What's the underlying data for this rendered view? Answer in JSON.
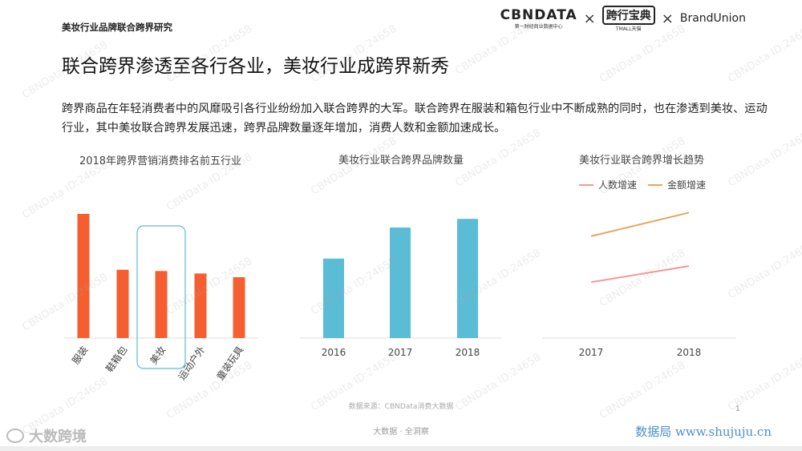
{
  "header": {
    "section_label": "美妆行业品牌联合跨界研究",
    "brands": {
      "cbndata": "CBNDATA",
      "cbndata_sub": "第一财经商业数据中心",
      "times_symbol": "×",
      "tmall": "跨行宝典",
      "tmall_sub": "TMALL天猫",
      "brandunion": "BrandUnion"
    }
  },
  "page_title": "联合跨界渗透至各行各业，美妆行业成跨界新秀",
  "intro_text": "跨界商品在年轻消费者中的风靡吸引各行业纷纷加入联合跨界的大军。联合跨界在服装和箱包行业中不断成熟的同时，也在渗透到美妆、运动行业，其中美妆联合跨界发展迅速，跨界品牌数量逐年增加，消费人数和金额加速成长。",
  "chart_data": [
    {
      "type": "bar",
      "title": "2018年跨界营销消费排名前五行业",
      "categories": [
        "服装",
        "鞋箱包",
        "美妆",
        "运动户外",
        "童装玩具"
      ],
      "values": [
        100,
        55,
        54,
        52,
        49
      ],
      "highlight": "美妆",
      "color": "#f55f2f",
      "highlight_color": "#5bbcd6"
    },
    {
      "type": "bar",
      "title": "美妆行业联合跨界品牌数量",
      "categories": [
        "2016",
        "2017",
        "2018"
      ],
      "values": [
        64,
        89,
        96
      ],
      "color": "#5bbcd6"
    },
    {
      "type": "line",
      "title": "美妆行业联合跨界增长趋势",
      "categories": [
        "2017",
        "2018"
      ],
      "series": [
        {
          "name": "人数增速",
          "values": [
            45,
            58
          ],
          "color": "#f29a96"
        },
        {
          "name": "金额增速",
          "values": [
            82,
            101
          ],
          "color": "#e8a55a"
        }
      ]
    }
  ],
  "footer": {
    "source": "数据来源：CBNData消费大数据",
    "center": "大数据 · 全洞察",
    "logo_left": "大数跨境",
    "logo_right": "数据局 www.shujuju.cn",
    "page_number": "1"
  },
  "watermark": "CBNData ID:24658"
}
